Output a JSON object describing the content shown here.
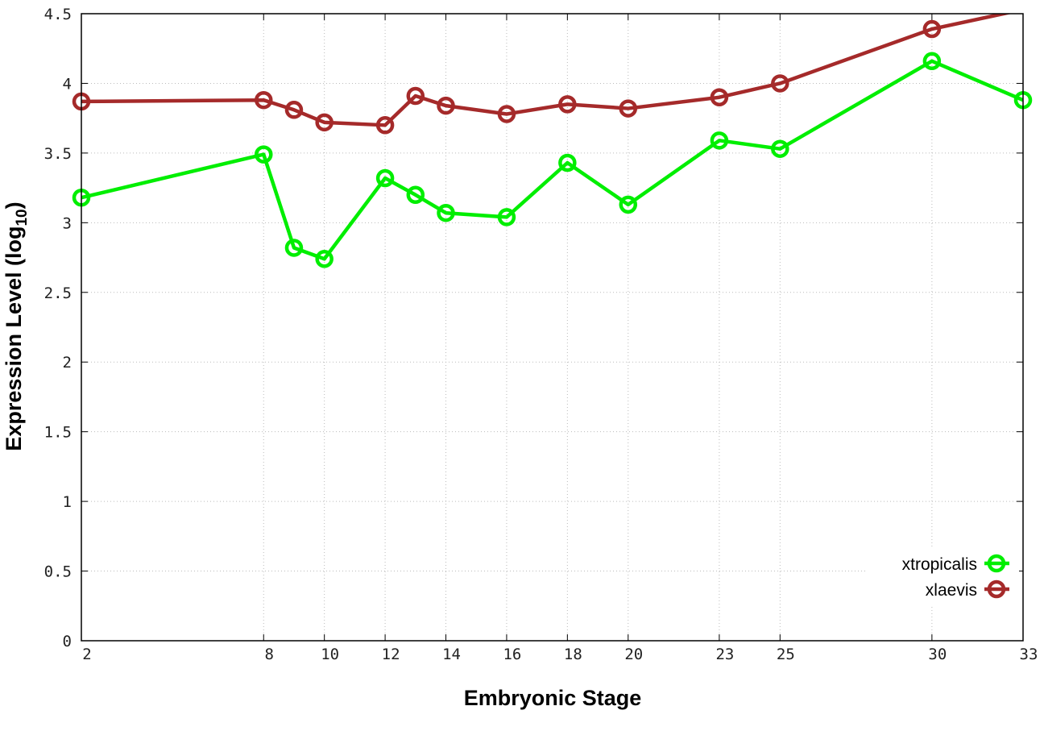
{
  "chart_data": {
    "type": "line",
    "title": "",
    "xlabel": "Embryonic Stage",
    "ylabel": "Expression Level (log10)",
    "ylabel_main": "Expression Level (log",
    "ylabel_sub": "10",
    "ylabel_close": ")",
    "xlim": [
      2,
      33
    ],
    "ylim": [
      0,
      4.5
    ],
    "x_ticks": [
      2,
      8,
      10,
      12,
      14,
      16,
      18,
      20,
      23,
      25,
      30,
      33
    ],
    "x_tick_labels": [
      "2",
      "8",
      "10",
      "12",
      "14",
      "16",
      "18",
      "20",
      "23",
      "25",
      "30",
      "33"
    ],
    "y_ticks": [
      0,
      0.5,
      1,
      1.5,
      2,
      2.5,
      3,
      3.5,
      4,
      4.5
    ],
    "y_tick_labels": [
      "0",
      "0.5",
      "1",
      "1.5",
      "2",
      "2.5",
      "3",
      "3.5",
      "4",
      "4.5"
    ],
    "grid": true,
    "legend_position": "bottom-right",
    "x": [
      2,
      8,
      9,
      10,
      12,
      13,
      14,
      16,
      18,
      20,
      23,
      25,
      30,
      33
    ],
    "series": [
      {
        "name": "xtropicalis",
        "color": "#00ee00",
        "values": [
          3.18,
          3.49,
          2.82,
          2.74,
          3.32,
          3.2,
          3.07,
          3.04,
          3.43,
          3.13,
          3.59,
          3.53,
          4.16,
          3.88
        ]
      },
      {
        "name": "xlaevis",
        "color": "#a52a2a",
        "values": [
          3.87,
          3.88,
          3.81,
          3.72,
          3.7,
          3.91,
          3.84,
          3.78,
          3.85,
          3.82,
          3.9,
          4.0,
          4.39,
          4.53
        ]
      }
    ]
  }
}
